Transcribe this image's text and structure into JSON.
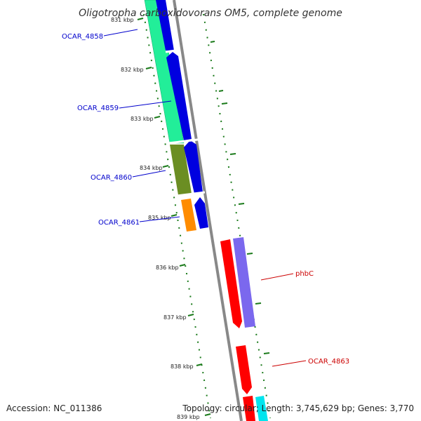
{
  "title": "Oligotropha carboxidovorans OM5, complete genome",
  "footer": {
    "accession": "Accession: NC_011386",
    "topology": "Topology: circular; Length: 3,745,629 bp; Genes: 3,770"
  },
  "ticks": [
    "831 kbp",
    "832 kbp",
    "833 kbp",
    "834 kbp",
    "835 kbp",
    "836 kbp",
    "837 kbp",
    "838 kbp",
    "839 kbp"
  ],
  "gene_labels": {
    "ocar_4858": "OCAR_4858",
    "ocar_4859": "OCAR_4859",
    "ocar_4860": "OCAR_4860",
    "ocar_4861": "OCAR_4861",
    "phbc": "phbC",
    "ocar_4863": "OCAR_4863"
  },
  "colors": {
    "backbone": "#888888",
    "tick": "#1a7a1a",
    "gene_blue": "#0000e0",
    "gene_green": "#22ee99",
    "gene_olive": "#6b8e23",
    "gene_orange": "#ff8c00",
    "gene_red": "#ff0000",
    "gene_purple": "#7b68ee",
    "gene_cyan": "#00e5ee",
    "label_blue": "#0000cc",
    "label_red": "#cc0000"
  }
}
